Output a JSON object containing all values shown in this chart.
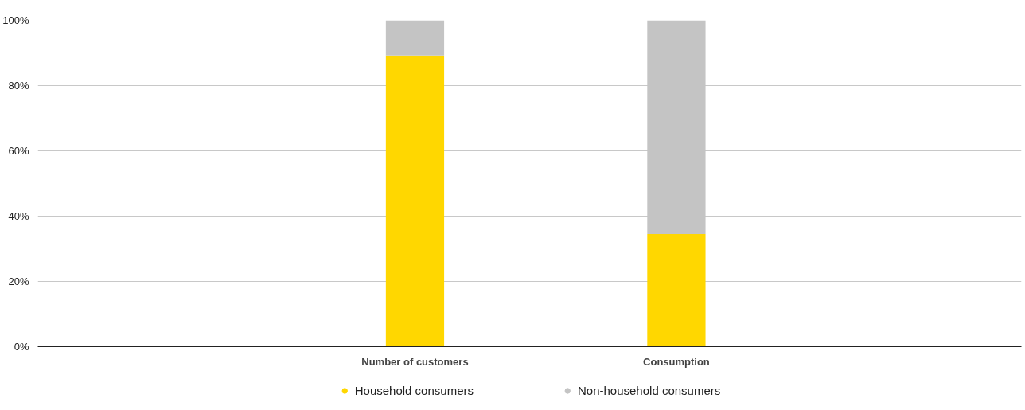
{
  "chart_data": {
    "type": "bar",
    "stacked": true,
    "categories": [
      "Number of customers",
      "Consumption"
    ],
    "series": [
      {
        "name": "Household consumers",
        "color": "#ffd700",
        "values": [
          89.2,
          34.5
        ]
      },
      {
        "name": "Non-household consumers",
        "color": "#c4c4c4",
        "values": [
          10.8,
          65.5
        ]
      }
    ],
    "ylim": [
      0,
      100
    ],
    "yticks": [
      {
        "value": 0,
        "label": "0%"
      },
      {
        "value": 20,
        "label": "20%"
      },
      {
        "value": 40,
        "label": "40%"
      },
      {
        "value": 60,
        "label": "60%"
      },
      {
        "value": 80,
        "label": "80%"
      },
      {
        "value": 100,
        "label": "100%"
      }
    ],
    "grid": "y",
    "legend": "bottom"
  }
}
